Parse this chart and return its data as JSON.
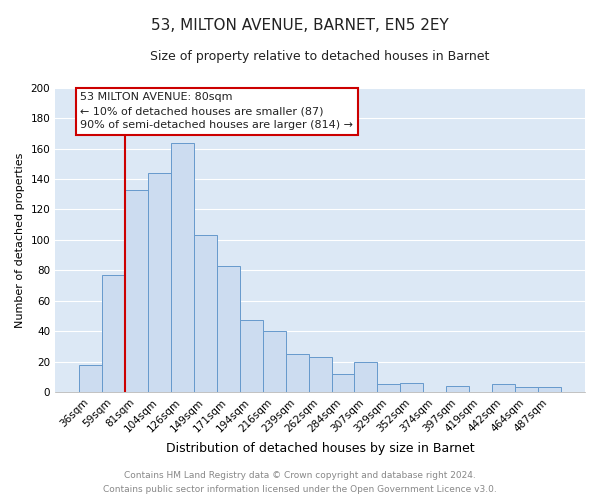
{
  "title": "53, MILTON AVENUE, BARNET, EN5 2EY",
  "subtitle": "Size of property relative to detached houses in Barnet",
  "xlabel": "Distribution of detached houses by size in Barnet",
  "ylabel": "Number of detached properties",
  "bar_fill_color": "#ccdcf0",
  "bar_edge_color": "#6699cc",
  "categories": [
    "36sqm",
    "59sqm",
    "81sqm",
    "104sqm",
    "126sqm",
    "149sqm",
    "171sqm",
    "194sqm",
    "216sqm",
    "239sqm",
    "262sqm",
    "284sqm",
    "307sqm",
    "329sqm",
    "352sqm",
    "374sqm",
    "397sqm",
    "419sqm",
    "442sqm",
    "464sqm",
    "487sqm"
  ],
  "values": [
    18,
    77,
    133,
    144,
    164,
    103,
    83,
    47,
    40,
    25,
    23,
    12,
    20,
    5,
    6,
    0,
    4,
    0,
    5,
    3,
    3
  ],
  "ylim": [
    0,
    200
  ],
  "yticks": [
    0,
    20,
    40,
    60,
    80,
    100,
    120,
    140,
    160,
    180,
    200
  ],
  "red_line_index": 2,
  "annotation_line1": "53 MILTON AVENUE: 80sqm",
  "annotation_line2": "← 10% of detached houses are smaller (87)",
  "annotation_line3": "90% of semi-detached houses are larger (814) →",
  "annotation_box_color": "#ffffff",
  "annotation_box_edge_color": "#cc0000",
  "red_line_color": "#cc0000",
  "footer_line1": "Contains HM Land Registry data © Crown copyright and database right 2024.",
  "footer_line2": "Contains public sector information licensed under the Open Government Licence v3.0.",
  "plot_bg_color": "#dce8f5",
  "figure_bg_color": "#ffffff",
  "grid_color": "#ffffff",
  "title_fontsize": 11,
  "subtitle_fontsize": 9,
  "xlabel_fontsize": 9,
  "ylabel_fontsize": 8,
  "tick_fontsize": 7.5,
  "annotation_fontsize": 8,
  "footer_fontsize": 6.5
}
